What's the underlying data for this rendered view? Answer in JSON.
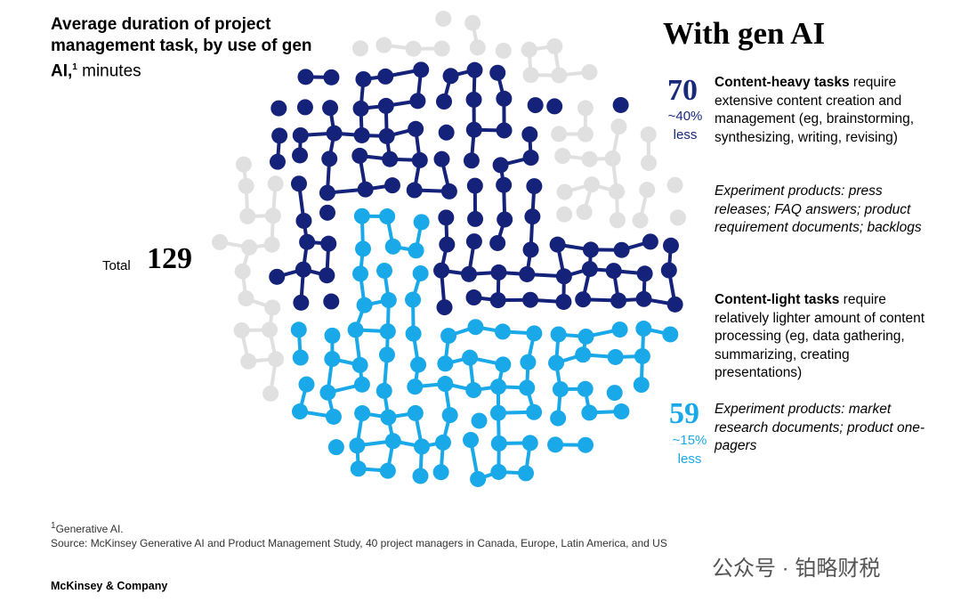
{
  "title": {
    "main": "Average duration of project management task, by use of gen AI,",
    "sup": "1",
    "unit": " minutes"
  },
  "heading": "With gen AI",
  "total": {
    "label": "Total",
    "value": "129"
  },
  "heavy": {
    "value": "70",
    "pct": "~40%",
    "less": "less",
    "lead": "Content-heavy tasks",
    "text": " require extensive content creation and management (eg, brainstorming, synthesizing, writing, revising)",
    "examples": "Experiment products: press releases; FAQ answers; product requirement documents; backlogs"
  },
  "light": {
    "value": "59",
    "pct": "~15%",
    "less": "less",
    "lead": "Content-light tasks",
    "text": " require relatively lighter amount of content processing (eg, data gathering, summarizing, creating presentations)",
    "examples": "Experiment products: market research documents; product one-pagers"
  },
  "footnote": {
    "sup": "1",
    "text": "Generative AI.",
    "source": "Source: McKinsey Generative AI and Product Management Study, 40 project managers in Canada, Europe, Latin America, and US"
  },
  "brand": "McKinsey & Company",
  "watermark": "公众号 · 铂略财税"
}
